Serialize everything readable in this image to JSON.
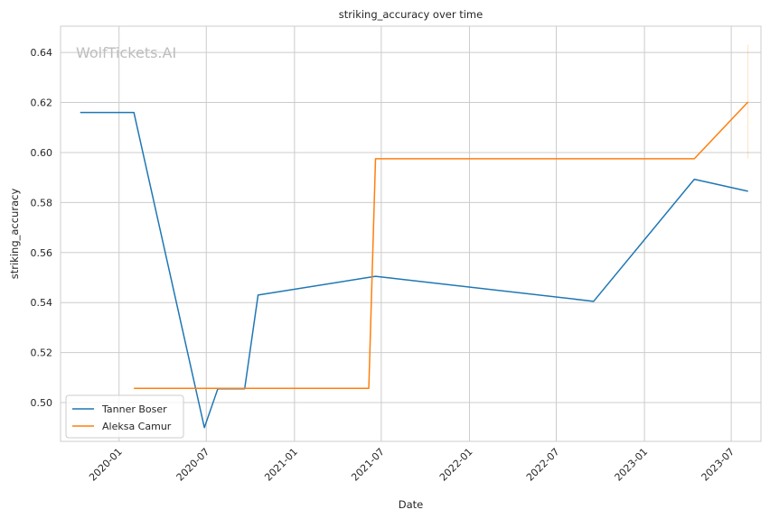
{
  "chart_data": {
    "type": "line",
    "title": "striking_accuracy over time",
    "xlabel": "Date",
    "ylabel": "striking_accuracy",
    "watermark": "WolfTickets.AI",
    "xlim": [
      "2019-09-01",
      "2023-09-01"
    ],
    "ylim": [
      0.4845,
      0.6505
    ],
    "x_ticks": [
      "2020-01-01",
      "2020-07-01",
      "2021-01-01",
      "2021-07-01",
      "2022-01-01",
      "2022-07-01",
      "2023-01-01",
      "2023-07-01"
    ],
    "x_tick_labels": [
      "2020-01",
      "2020-07",
      "2021-01",
      "2021-07",
      "2022-01",
      "2022-07",
      "2023-01",
      "2023-07"
    ],
    "y_ticks": [
      0.5,
      0.52,
      0.54,
      0.56,
      0.58,
      0.6,
      0.62,
      0.64
    ],
    "y_tick_labels": [
      "0.50",
      "0.52",
      "0.54",
      "0.56",
      "0.58",
      "0.60",
      "0.62",
      "0.64"
    ],
    "grid": true,
    "legend_position": "lower-left",
    "series": [
      {
        "name": "Tanner Boser",
        "color": "#1f77b4",
        "points": [
          {
            "x": "2019-10-12",
            "y": 0.616
          },
          {
            "x": "2020-02-01",
            "y": 0.616
          },
          {
            "x": "2020-06-27",
            "y": 0.49
          },
          {
            "x": "2020-07-25",
            "y": 0.5055
          },
          {
            "x": "2020-09-19",
            "y": 0.5055
          },
          {
            "x": "2020-10-17",
            "y": 0.543
          },
          {
            "x": "2021-06-19",
            "y": 0.5505
          },
          {
            "x": "2022-09-17",
            "y": 0.5405
          },
          {
            "x": "2023-04-15",
            "y": 0.5893
          },
          {
            "x": "2023-08-05",
            "y": 0.5845
          }
        ]
      },
      {
        "name": "Aleksa Camur",
        "color": "#ff7f0e",
        "points": [
          {
            "x": "2020-02-01",
            "y": 0.5057
          },
          {
            "x": "2021-06-05",
            "y": 0.5057
          },
          {
            "x": "2021-06-19",
            "y": 0.5975
          },
          {
            "x": "2023-04-15",
            "y": 0.5975
          },
          {
            "x": "2023-08-05",
            "y": 0.6202
          }
        ],
        "error_band": {
          "x": "2023-08-05",
          "low": 0.5975,
          "high": 0.643
        }
      }
    ]
  }
}
